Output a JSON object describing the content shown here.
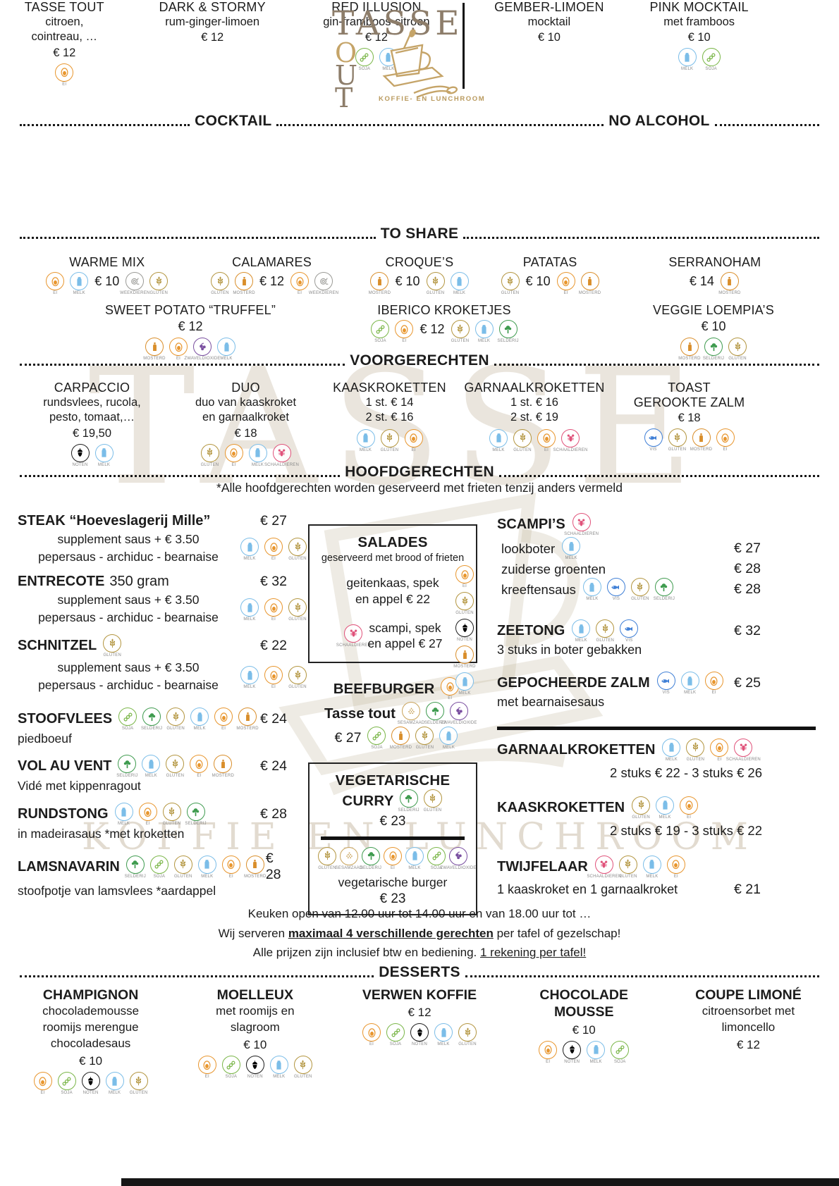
{
  "logo": {
    "word": "TASSE",
    "vertical": [
      "O",
      "U",
      "T"
    ],
    "tagline": "KOFFIE- EN LUNCHROOM"
  },
  "watermark": {
    "word": "TASSE",
    "tagline": "KOFFIE EN LUNCHROOM"
  },
  "headers": {
    "cocktail": "COCKTAIL",
    "no_alcohol": "NO ALCOHOL",
    "to_share": "TO SHARE",
    "voorgerechten": "VOORGERECHTEN",
    "hoofdgerechten": "HOOFDGERECHTEN",
    "desserts": "DESSERTS"
  },
  "note_hoofdgerechten": "*Alle hoofdgerechten worden geserveerd met frieten tenzij anders vermeld",
  "allergen_labels": {
    "ei": "EI",
    "melk": "MELK",
    "gluten": "GLUTEN",
    "soja": "SOJA",
    "selderij": "SELDERIJ",
    "mosterd": "MOSTERD",
    "noten": "NOTEN",
    "weekdieren": "WEEKDIEREN",
    "schaaldieren": "SCHAALDIEREN",
    "vis": "VIS",
    "sesamzaad": "SESAMZAAD",
    "zwaveldioxide": "ZWAVELDIOXIDE"
  },
  "allergen_colors": {
    "ei": "#e8962e",
    "melk": "#7bbde8",
    "gluten": "#b3953f",
    "soja": "#7ab648",
    "selderij": "#3f9b4f",
    "mosterd": "#d98e2b",
    "noten": "#6e４a2d",
    "weekdieren": "#9a9a96",
    "schaaldieren": "#e0527a",
    "vis": "#3f7fd6",
    "sesamzaad": "#c9a45c",
    "zwaveldioxide": "#7a4fa0"
  },
  "cocktails": [
    {
      "name": "TASSE TOUT",
      "desc": [
        "citroen,",
        "cointreau, …"
      ],
      "price": "€ 12",
      "allergens": [
        "ei"
      ]
    },
    {
      "name": "DARK & STORMY",
      "desc": [
        "rum-ginger-limoen"
      ],
      "price": "€ 12",
      "allergens": []
    },
    {
      "name": "RED ILLUSION",
      "desc": [
        "gin-framboos-citroen"
      ],
      "price": "€ 12",
      "allergens": [
        "soja",
        "melk"
      ]
    }
  ],
  "no_alcohol": [
    {
      "name": "GEMBER-LIMOEN",
      "desc": [
        "mocktail"
      ],
      "price": "€ 10",
      "allergens": []
    },
    {
      "name": "PINK MOCKTAIL",
      "desc": [
        "met framboos"
      ],
      "price": "€ 10",
      "allergens": [
        "melk",
        "soja"
      ]
    }
  ],
  "to_share_row1": [
    {
      "name": "WARME MIX",
      "left": [
        "ei",
        "melk"
      ],
      "price": "€ 10",
      "right": [
        "weekdieren",
        "gluten"
      ]
    },
    {
      "name": "CALAMARES",
      "left": [
        "gluten",
        "mosterd"
      ],
      "price": "€ 12",
      "right": [
        "ei",
        "weekdieren"
      ]
    },
    {
      "name": "CROQUE’S",
      "left": [
        "mosterd"
      ],
      "price": "€ 10",
      "right": [
        "gluten",
        "melk"
      ]
    },
    {
      "name": "PATATAS",
      "left": [
        "gluten"
      ],
      "price": "€ 10",
      "right": [
        "ei",
        "mosterd"
      ]
    },
    {
      "name": "SERRANOHAM",
      "left": [],
      "price": "€ 14",
      "right": [
        "mosterd"
      ]
    }
  ],
  "to_share_row2": [
    {
      "name": "SWEET POTATO “TRUFFEL”",
      "price": "€ 12",
      "below": [
        "mosterd",
        "ei",
        "zwaveldioxide",
        "melk"
      ],
      "left": [],
      "right": []
    },
    {
      "name": "IBERICO KROKETJES",
      "price": "€ 12",
      "below": [],
      "left": [
        "soja",
        "ei"
      ],
      "right": [
        "gluten",
        "melk",
        "selderij"
      ]
    },
    {
      "name": "VEGGIE LOEMPIA’S",
      "price": "€ 10",
      "below": [
        "mosterd",
        "selderij",
        "gluten"
      ],
      "left": [],
      "right": []
    }
  ],
  "voorgerechten": [
    {
      "name": "CARPACCIO",
      "desc": [
        "rundsvlees, rucola,",
        "pesto, tomaat,…"
      ],
      "price": "€ 19,50",
      "allergens": [
        "noten",
        "melk"
      ]
    },
    {
      "name": "DUO",
      "desc": [
        "duo van kaaskroket",
        "en garnaalkroket"
      ],
      "price": "€ 18",
      "allergens": [
        "gluten",
        "ei",
        "melk",
        "schaaldieren"
      ]
    },
    {
      "name": "KAASKROKETTEN",
      "desc": [
        "1 st. € 14",
        "2 st. € 16"
      ],
      "price": "",
      "allergens": [
        "melk",
        "gluten",
        "ei"
      ]
    },
    {
      "name": "GARNAALKROKETTEN",
      "desc": [
        "1 st.  € 16",
        "2 st.  € 19"
      ],
      "price": "",
      "allergens": [
        "melk",
        "gluten",
        "ei",
        "schaaldieren"
      ]
    },
    {
      "name": "TOAST",
      "desc": [
        "GEROOKTE ZALM"
      ],
      "price": "€ 18",
      "allergens": [
        "vis",
        "gluten",
        "mosterd",
        "ei"
      ]
    }
  ],
  "mains_left": [
    {
      "title": "STEAK “Hoeveslagerij Mille”",
      "suffix": "",
      "inline": [],
      "price": "€ 27",
      "sub": [
        "supplement saus + € 3.50",
        "pepersaus - archiduc - bearnaise"
      ],
      "side": [
        "melk",
        "ei",
        "gluten"
      ],
      "desc": ""
    },
    {
      "title": "ENTRECOTE",
      "suffix": "350 gram",
      "inline": [],
      "price": "€ 32",
      "sub": [
        "supplement saus + € 3.50",
        "pepersaus - archiduc - bearnaise"
      ],
      "side": [
        "melk",
        "ei",
        "gluten"
      ],
      "desc": ""
    },
    {
      "title": "SCHNITZEL",
      "suffix": "",
      "inline": [
        "gluten"
      ],
      "price": "€ 22",
      "sub": [
        "supplement saus + € 3.50",
        "pepersaus - archiduc - bearnaise"
      ],
      "side": [
        "melk",
        "ei",
        "gluten"
      ],
      "desc": ""
    },
    {
      "title": "STOOFVLEES",
      "suffix": "",
      "inline": [
        "soja",
        "selderij",
        "gluten",
        "melk",
        "ei",
        "mosterd"
      ],
      "price": "€ 24",
      "sub": [],
      "side": [],
      "desc": "piedboeuf"
    },
    {
      "title": "VOL AU VENT",
      "suffix": "",
      "inline": [
        "selderij",
        "melk",
        "gluten",
        "ei",
        "mosterd"
      ],
      "price": "€ 24",
      "sub": [],
      "side": [],
      "desc": "Vidé met kippenragout"
    },
    {
      "title": "RUNDSTONG",
      "suffix": "",
      "inline": [
        "melk",
        "ei",
        "gluten",
        "selderij"
      ],
      "price": "€ 28",
      "sub": [],
      "side": [],
      "desc": "in madeirasaus *met kroketten"
    },
    {
      "title": "LAMSNAVARIN",
      "suffix": "",
      "inline": [
        "selderij",
        "soja",
        "gluten",
        "melk",
        "ei",
        "mosterd"
      ],
      "price": "€ 28",
      "sub": [],
      "side": [],
      "desc": "stoofpotje van lamsvlees *aardappel"
    }
  ],
  "salades_box": {
    "title": "SALADES",
    "sub": "geserveerd met brood of frieten",
    "e1": [
      "geitenkaas, spek",
      "en appel  € 22"
    ],
    "e2": [
      "scampi, spek",
      "en appel € 27"
    ],
    "e2_icon": [
      "schaaldieren"
    ],
    "side": [
      "ei",
      "gluten",
      "noten",
      "mosterd",
      "melk"
    ]
  },
  "beefburger": {
    "l1": "BEEFBURGER",
    "l2": "Tasse tout",
    "price": "€ 27",
    "i1": [
      "ei"
    ],
    "i2": [
      "sesamzaad",
      "selderij",
      "zwaveldioxide"
    ],
    "i3": [
      "soja",
      "mosterd",
      "gluten",
      "melk"
    ]
  },
  "veg_box": {
    "t1": "VEGETARISCHE",
    "t2": "CURRY",
    "t_icons": [
      "selderij",
      "gluten"
    ],
    "price1": "€ 23",
    "icons": [
      "gluten",
      "sesamzaad",
      "selderij",
      "ei",
      "melk",
      "soja",
      "zwaveldioxide"
    ],
    "name2": "vegetarische burger",
    "price2": "€ 23"
  },
  "mains_right": {
    "scampis": {
      "title": "SCAMPI’S",
      "t_icons": [
        "schaaldieren"
      ],
      "rows": [
        {
          "name": "lookboter",
          "icons": [
            "melk"
          ],
          "price": "€ 27"
        },
        {
          "name": "zuiderse groenten",
          "icons": [],
          "price": "€ 28"
        },
        {
          "name": "kreeftensaus",
          "icons": [
            "melk",
            "vis",
            "gluten",
            "selderij"
          ],
          "price": "€ 28"
        }
      ]
    },
    "zeetong": {
      "title": "ZEETONG",
      "t_icons": [
        "melk",
        "gluten",
        "vis"
      ],
      "price": "€ 32",
      "desc": "3 stuks in boter gebakken"
    },
    "zalm": {
      "title": "GEPOCHEERDE ZALM",
      "t_icons": [
        "vis",
        "melk",
        "ei"
      ],
      "price": "€ 25",
      "desc": "met bearnaisesaus"
    },
    "garnaal": {
      "title": "GARNAALKROKETTEN",
      "t_icons": [
        "melk",
        "gluten",
        "ei",
        "schaaldieren"
      ],
      "line": "2 stuks € 22 - 3 stuks € 26"
    },
    "kaas": {
      "title": "KAASKROKETTEN",
      "t_icons": [
        "gluten",
        "melk",
        "ei"
      ],
      "line": "2 stuks € 19 - 3 stuks € 22"
    },
    "twijfelaar": {
      "title": "TWIJFELAAR",
      "t_icons": [
        "schaaldieren",
        "gluten",
        "melk",
        "ei"
      ],
      "desc": "1 kaaskroket en 1 garnaalkroket",
      "price": "€ 21"
    }
  },
  "footer": {
    "line1": "Keuken open van 12.00 uur tot 14.00 uur en van 18.00 uur tot …",
    "line2_pre": "Wij serveren ",
    "line2_bold": "maximaal 4 verschillende gerechten",
    "line2_post": " per tafel of gezelschap!",
    "line3_pre": "Alle prijzen zijn inclusief btw en bediening. ",
    "line3_und": "1 rekening per tafel!"
  },
  "desserts": [
    {
      "name": "CHAMPIGNON",
      "desc": [
        "chocolademousse",
        "roomijs merengue",
        "chocoladesaus"
      ],
      "price": "€ 10",
      "allergens": [
        "ei",
        "soja",
        "noten",
        "melk",
        "gluten"
      ]
    },
    {
      "name": "MOELLEUX",
      "desc": [
        "met roomijs en",
        "slagroom"
      ],
      "price": "€ 10",
      "allergens": [
        "ei",
        "soja",
        "noten",
        "melk",
        "gluten"
      ]
    },
    {
      "name": "VERWEN KOFFIE",
      "desc": [],
      "price": "€ 12",
      "allergens": [
        "ei",
        "soja",
        "noten",
        "melk",
        "gluten"
      ]
    },
    {
      "name": "CHOCOLADE MOUSSE",
      "desc": [],
      "price": "€ 10",
      "allergens": [
        "ei",
        "noten",
        "melk",
        "soja"
      ]
    },
    {
      "name": "COUPE LIMONÉ",
      "desc": [
        "citroensorbet met",
        "limoncello"
      ],
      "price": "€ 12",
      "allergens": []
    }
  ]
}
